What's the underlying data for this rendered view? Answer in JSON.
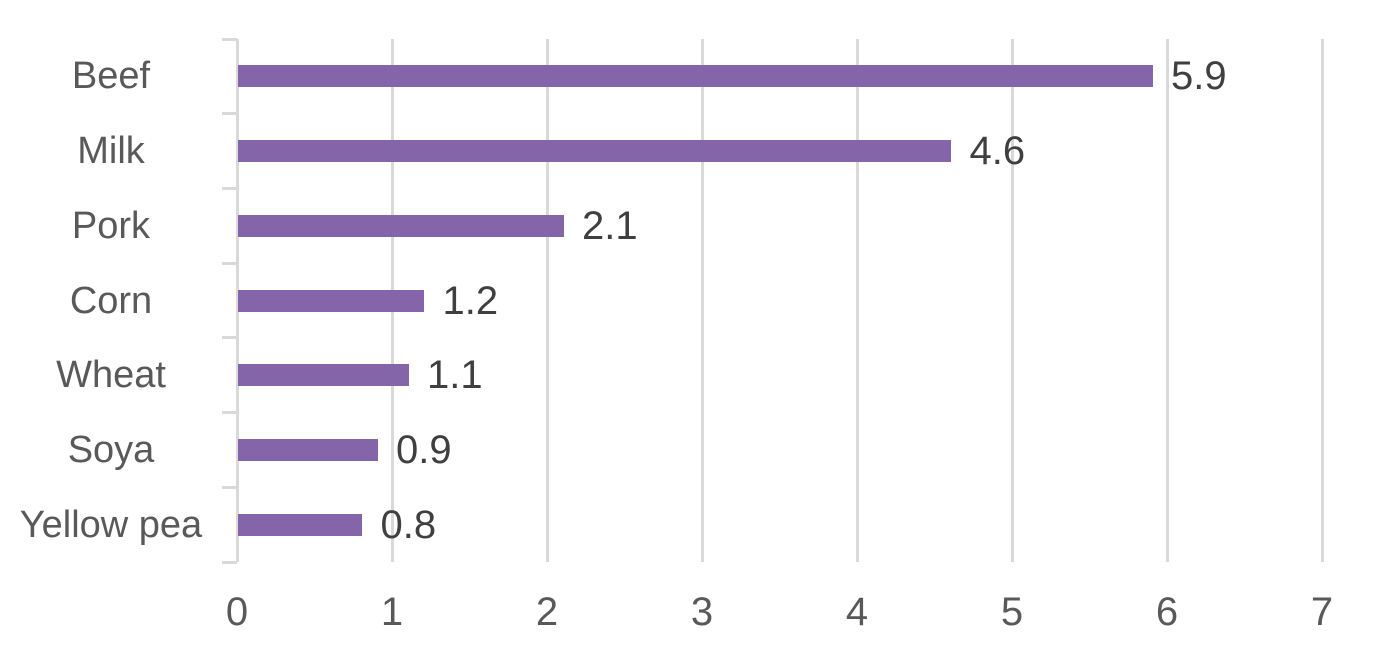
{
  "chart_data": {
    "type": "bar",
    "orientation": "horizontal",
    "title": "",
    "xlabel": "",
    "ylabel": "",
    "categories": [
      "Beef",
      "Milk",
      "Pork",
      "Corn",
      "Wheat",
      "Soya",
      "Yellow pea"
    ],
    "values": [
      5.9,
      4.6,
      2.1,
      1.2,
      1.1,
      0.9,
      0.8
    ],
    "value_labels": [
      "5.9",
      "4.6",
      "2.1",
      "1.2",
      "1.1",
      "0.9",
      "0.8"
    ],
    "xlim": [
      0,
      7
    ],
    "x_ticks": [
      "0",
      "1",
      "2",
      "3",
      "4",
      "5",
      "6",
      "7"
    ],
    "grid": true,
    "legend": false,
    "data_label_position": "outside-end",
    "colors": {
      "bar": "#8565A9",
      "gridline": "#D9D9D9",
      "axis_line": "#D9D9D9",
      "category_label": "#595959",
      "tick_label": "#595959",
      "value_label": "#3F3F3F",
      "background": "#FFFFFF"
    }
  }
}
